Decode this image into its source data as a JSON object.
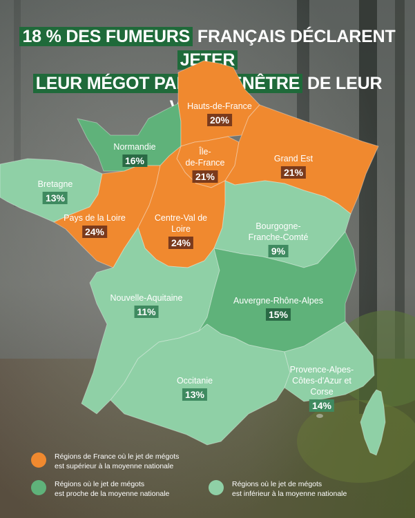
{
  "title": {
    "line1": [
      {
        "text": "18 % DES FUMEURS",
        "hl": true
      },
      {
        "text": " FRANÇAIS DÉCLARENT ",
        "hl": false
      },
      {
        "text": "JETER",
        "hl": true
      }
    ],
    "line2": [
      {
        "text": "LEUR MÉGOT PAR LA FENÊTRE",
        "hl": true
      },
      {
        "text": " DE LEUR VOITURE",
        "hl": false
      }
    ]
  },
  "colors": {
    "above": "#f0892f",
    "close": "#5fb27a",
    "below": "#8fd0a6",
    "title_highlight": "#1f6a3a"
  },
  "regions": [
    {
      "name": "Hauts-de-France",
      "value": "20%",
      "category": "above"
    },
    {
      "name": "Normandie",
      "value": "16%",
      "category": "close"
    },
    {
      "name": "Île-\nde-France",
      "value": "21%",
      "category": "above"
    },
    {
      "name": "Grand Est",
      "value": "21%",
      "category": "above"
    },
    {
      "name": "Bretagne",
      "value": "13%",
      "category": "below"
    },
    {
      "name": "Pays de la Loire",
      "value": "24%",
      "category": "above"
    },
    {
      "name": "Centre-Val de\nLoire",
      "value": "24%",
      "category": "above"
    },
    {
      "name": "Bourgogne-\nFranche-Comté",
      "value": "9%",
      "category": "below"
    },
    {
      "name": "Nouvelle-Aquitaine",
      "value": "11%",
      "category": "below"
    },
    {
      "name": "Auvergne-Rhône-Alpes",
      "value": "15%",
      "category": "close"
    },
    {
      "name": "Occitanie",
      "value": "13%",
      "category": "below"
    },
    {
      "name": "Provence-Alpes-\nCôtes-d'Azur et\nCorse",
      "value": "14%",
      "category": "below"
    }
  ],
  "legend": [
    {
      "line1": "Régions de France où le jet de mégots",
      "line2": "est supérieur à la moyenne nationale",
      "category": "above"
    },
    {
      "line1": "Régions où le jet de mégots",
      "line2": "est proche de la moyenne nationale",
      "category": "close"
    },
    {
      "line1": "Régions où le jet de mégots",
      "line2": "est inférieur à la moyenne nationale",
      "category": "below"
    }
  ]
}
